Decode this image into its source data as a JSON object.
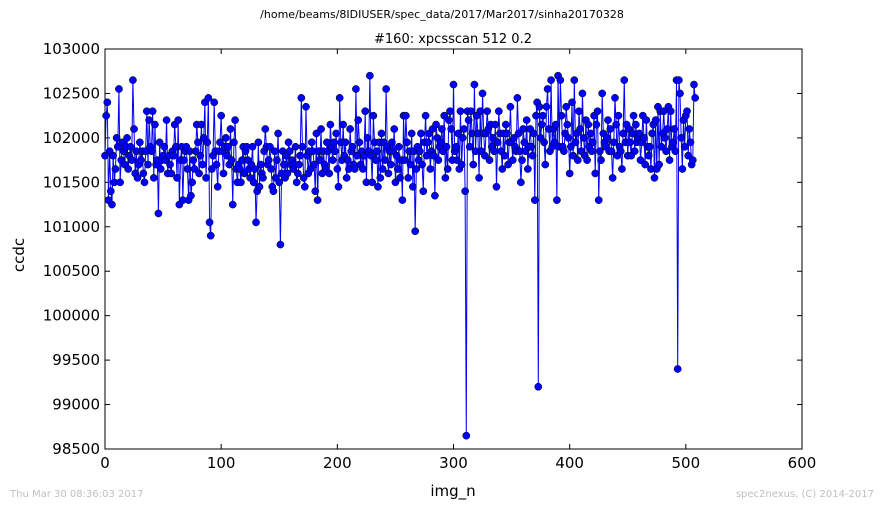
{
  "header": {
    "path": "/home/beams/8IDIUSER/spec_data/2017/Mar2017/sinha20170328"
  },
  "footer": {
    "timestamp": "Thu Mar 30 08:36:03 2017",
    "credit": "spec2nexus, (C) 2014-2017"
  },
  "colors": {
    "series": "#0000ff",
    "axis": "#000000",
    "footer": "#bfbfbf"
  },
  "chart_data": {
    "type": "line",
    "title": "#160: xpcsscan 512 0.2",
    "xlabel": "img_n",
    "ylabel": "ccdc",
    "xlim": [
      0,
      600
    ],
    "ylim": [
      98500,
      103000
    ],
    "xticks": [
      "0",
      "100",
      "200",
      "300",
      "400",
      "500",
      "600"
    ],
    "yticks": [
      "98500",
      "99000",
      "99500",
      "100000",
      "100500",
      "101000",
      "101500",
      "102000",
      "102500",
      "103000"
    ],
    "grid": false,
    "markers": "circle",
    "series": [
      {
        "x_start": 0,
        "x_step": 1,
        "values": [
          101800,
          102250,
          102400,
          101300,
          101850,
          101400,
          101250,
          101800,
          101500,
          101650,
          102000,
          101900,
          102550,
          101500,
          101750,
          101950,
          101850,
          101700,
          101900,
          102000,
          101650,
          101800,
          101900,
          101750,
          102650,
          102100,
          101600,
          101850,
          101550,
          101700,
          101950,
          101750,
          101850,
          101600,
          101500,
          101850,
          102300,
          101700,
          102200,
          101900,
          101850,
          102300,
          101550,
          102150,
          101700,
          101750,
          101150,
          101950,
          101650,
          101750,
          101800,
          101900,
          101750,
          102200,
          101600,
          101800,
          101700,
          101600,
          101850,
          101800,
          102150,
          101900,
          101550,
          102200,
          101250,
          101750,
          101900,
          101300,
          101750,
          101850,
          101900,
          101650,
          101300,
          101850,
          101350,
          101500,
          101750,
          101650,
          101850,
          102150,
          101950,
          101600,
          101800,
          102150,
          101700,
          102000,
          102400,
          101550,
          101950,
          102450,
          101050,
          100900,
          101650,
          101800,
          102400,
          101850,
          101700,
          101450,
          101850,
          101950,
          102250,
          101850,
          101600,
          101900,
          102000,
          101800,
          101900,
          101700,
          102100,
          101750,
          101250,
          101950,
          102200,
          101650,
          101500,
          101700,
          101650,
          101500,
          101750,
          101900,
          101600,
          101850,
          101900,
          101750,
          101650,
          101550,
          101700,
          101900,
          101500,
          101650,
          101050,
          101400,
          101950,
          101450,
          101700,
          101600,
          101550,
          101850,
          102100,
          101900,
          101700,
          101750,
          101900,
          101650,
          101450,
          101400,
          101850,
          101550,
          101750,
          102050,
          101500,
          100800,
          101600,
          101850,
          101700,
          101550,
          101800,
          101600,
          101950,
          101850,
          101700,
          101750,
          101650,
          101700,
          101900,
          101500,
          101600,
          101700,
          101800,
          102450,
          101900,
          101550,
          101450,
          102350,
          101800,
          101600,
          101850,
          101650,
          101950,
          101850,
          101700,
          101400,
          102050,
          101300,
          101850,
          101750,
          102100,
          101600,
          101850,
          101700,
          101650,
          101950,
          101850,
          101600,
          102150,
          101900,
          101750,
          101950,
          101850,
          102050,
          101650,
          101450,
          102450,
          101950,
          101750,
          102150,
          101800,
          101950,
          101550,
          101750,
          101650,
          102100,
          101850,
          101900,
          101700,
          101650,
          102550,
          101800,
          102200,
          101950,
          101700,
          101850,
          101650,
          101800,
          102300,
          101500,
          102000,
          101850,
          102700,
          101800,
          101500,
          102250,
          101950,
          101750,
          101850,
          101450,
          101950,
          101550,
          102050,
          101650,
          101950,
          101750,
          102550,
          101900,
          101600,
          101850,
          101700,
          101950,
          101850,
          102100,
          101500,
          101800,
          101650,
          101900,
          101550,
          101750,
          101300,
          102250,
          101750,
          102250,
          101950,
          101550,
          101850,
          101700,
          102050,
          101450,
          101850,
          100950,
          101650,
          101900,
          101750,
          101850,
          102050,
          101700,
          101400,
          101950,
          102250,
          101800,
          101950,
          102050,
          101650,
          101850,
          102100,
          101800,
          101350,
          102150,
          102000,
          101750,
          101900,
          101950,
          102100,
          101850,
          102250,
          101550,
          101900,
          101650,
          102200,
          102300,
          102100,
          101750,
          102600,
          101850,
          101900,
          101750,
          102050,
          101650,
          102300,
          101700,
          102000,
          102100,
          101400,
          98650,
          102300,
          102200,
          101900,
          102300,
          102050,
          101700,
          102600,
          101850,
          102250,
          102050,
          101550,
          102300,
          101850,
          102500,
          102050,
          101800,
          102050,
          102300,
          102100,
          101750,
          102150,
          101900,
          102000,
          101850,
          102150,
          101450,
          101950,
          102300,
          102050,
          101850,
          101650,
          102050,
          101800,
          102150,
          102050,
          101700,
          101950,
          102350,
          101950,
          101750,
          102000,
          101900,
          101850,
          102450,
          102050,
          101850,
          101500,
          101750,
          102100,
          101950,
          101850,
          102200,
          101650,
          101900,
          102100,
          101900,
          101800,
          102050,
          101300,
          102250,
          102400,
          99200,
          102350,
          102000,
          102150,
          102250,
          101950,
          101700,
          102350,
          102550,
          102100,
          101850,
          102650,
          101900,
          102100,
          101950,
          102150,
          101300,
          102700,
          101900,
          102650,
          102250,
          101900,
          101850,
          102050,
          102350,
          102150,
          102000,
          101600,
          101900,
          102400,
          101800,
          102650,
          101950,
          102050,
          101750,
          102300,
          102100,
          101850,
          102500,
          102000,
          101800,
          102200,
          101750,
          102150,
          101900,
          102050,
          101850,
          101950,
          102250,
          101600,
          102150,
          102300,
          101300,
          101850,
          101750,
          102500,
          102050,
          101950,
          101900,
          102000,
          102200,
          101850,
          102100,
          101850,
          101550,
          101950,
          102450,
          102150,
          101800,
          102250,
          101900,
          101850,
          101650,
          102050,
          102650,
          101950,
          102150,
          101800,
          102100,
          101950,
          101800,
          102050,
          102250,
          101850,
          102150,
          101950,
          102000,
          102050,
          101750,
          101950,
          102250,
          102000,
          101700,
          102200,
          101900,
          101800,
          101900,
          101650,
          102050,
          102150,
          101550,
          102200,
          101650,
          102350,
          101700,
          102300,
          101900,
          102050,
          102300,
          102000,
          101850,
          102100,
          102350,
          101750,
          102300,
          101900,
          101950,
          102100,
          101850,
          102650,
          99400,
          102650,
          102500,
          102000,
          101650,
          102200,
          101900,
          102250,
          102300,
          101800,
          102100,
          101950,
          101700,
          101750,
          102600,
          102450
        ]
      }
    ]
  }
}
